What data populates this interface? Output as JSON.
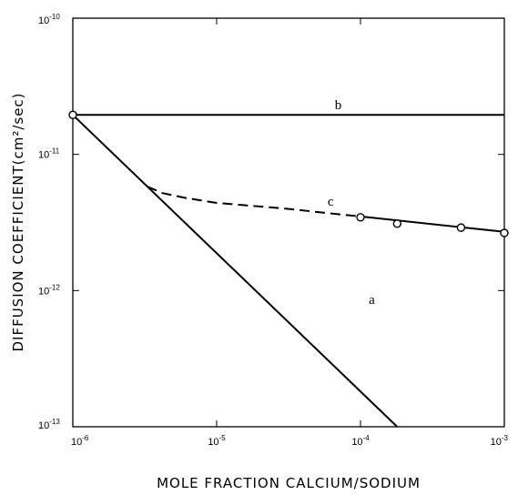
{
  "chart_data": {
    "type": "line",
    "title": "",
    "xlabel": "MOLE FRACTION CALCIUM/SODIUM",
    "ylabel": "DIFFUSION COEFFICIENT(cm²/sec)",
    "x_scale": "log",
    "y_scale": "log",
    "xlim": [
      1e-06,
      0.001
    ],
    "ylim": [
      1e-13,
      1e-10
    ],
    "x_ticks": [
      {
        "value": 1e-06,
        "base": "10",
        "exp": "-6"
      },
      {
        "value": 1e-05,
        "base": "10",
        "exp": "-5"
      },
      {
        "value": 0.0001,
        "base": "10",
        "exp": "-4"
      },
      {
        "value": 0.001,
        "base": "10",
        "exp": "-3"
      }
    ],
    "y_ticks": [
      {
        "value": 1e-13,
        "base": "10",
        "exp": "-13"
      },
      {
        "value": 1e-12,
        "base": "10",
        "exp": "-12"
      },
      {
        "value": 1e-11,
        "base": "10",
        "exp": "-11"
      },
      {
        "value": 1e-10,
        "base": "10",
        "exp": "-10"
      }
    ],
    "grid": false,
    "series": [
      {
        "label": "a",
        "style": "solid",
        "x": [
          1e-06,
          0.00018
        ],
        "y": [
          1.95e-11,
          1e-13
        ]
      },
      {
        "label": "b",
        "style": "solid",
        "x": [
          1e-06,
          0.001
        ],
        "y": [
          1.95e-11,
          1.95e-11
        ]
      },
      {
        "label": "c",
        "style": "dashed",
        "x": [
          3.3e-06,
          4.2e-06,
          6e-06,
          1e-05,
          3e-05,
          6e-05,
          0.0001
        ],
        "y": [
          5.8e-12,
          5.2e-12,
          4.8e-12,
          4.4e-12,
          4e-12,
          3.7e-12,
          3.5e-12
        ]
      },
      {
        "label": "c",
        "style": "solid",
        "x": [
          0.0001,
          0.001
        ],
        "y": [
          3.5e-12,
          2.7e-12
        ]
      }
    ],
    "points": [
      {
        "x": 1e-06,
        "y": 1.95e-11
      },
      {
        "x": 0.0001,
        "y": 3.45e-12
      },
      {
        "x": 0.00018,
        "y": 3.1e-12
      },
      {
        "x": 0.0005,
        "y": 2.9e-12
      },
      {
        "x": 0.001,
        "y": 2.65e-12
      }
    ],
    "curve_labels": [
      {
        "text": "a",
        "x": 0.00012,
        "y": 8e-13
      },
      {
        "text": "b",
        "x": 7e-05,
        "y": 2.15e-11
      },
      {
        "text": "c",
        "x": 6.2e-05,
        "y": 4.2e-12
      }
    ]
  }
}
